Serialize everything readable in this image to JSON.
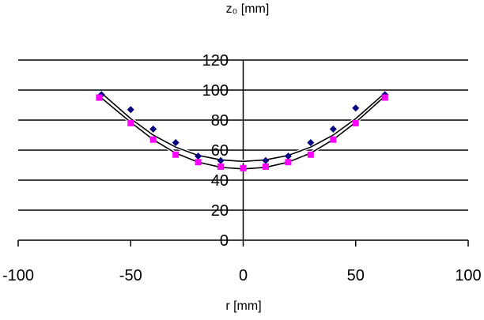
{
  "chart_data": {
    "type": "scatter",
    "title": "",
    "xlabel": "r [mm]",
    "ylabel": "z₀ [mm]",
    "xlim": [
      -100,
      100
    ],
    "ylim": [
      0,
      120
    ],
    "x_ticks": [
      "-100",
      "-50",
      "0",
      "50",
      "100"
    ],
    "y_ticks": [
      "0",
      "20",
      "40",
      "60",
      "80",
      "100",
      "120"
    ],
    "grid": "horizontal",
    "legend": "none",
    "series": [
      {
        "marker": "diamond",
        "color": "#000080",
        "points": [
          [
            -63,
            97
          ],
          [
            -50,
            87
          ],
          [
            -40,
            74
          ],
          [
            -30,
            65
          ],
          [
            -20,
            56
          ],
          [
            -10,
            53
          ],
          [
            10,
            53
          ],
          [
            20,
            56
          ],
          [
            30,
            65
          ],
          [
            40,
            74
          ],
          [
            50,
            88
          ],
          [
            63,
            97
          ]
        ]
      },
      {
        "marker": "square",
        "color": "#ff00ff",
        "points": [
          [
            -64,
            95
          ],
          [
            -50,
            78
          ],
          [
            -40,
            67
          ],
          [
            -30,
            57
          ],
          [
            -20,
            52
          ],
          [
            -10,
            49
          ],
          [
            0,
            48
          ],
          [
            10,
            49
          ],
          [
            20,
            52
          ],
          [
            30,
            57
          ],
          [
            40,
            67
          ],
          [
            50,
            78
          ],
          [
            63,
            95
          ]
        ]
      },
      {
        "type": "line",
        "color": "#000000",
        "points": [
          [
            -63,
            98
          ],
          [
            -50,
            81
          ],
          [
            -40,
            70
          ],
          [
            -30,
            62
          ],
          [
            -20,
            56.5
          ],
          [
            -10,
            53.5
          ],
          [
            0,
            52.5
          ],
          [
            10,
            53.5
          ],
          [
            20,
            56.5
          ],
          [
            30,
            62
          ],
          [
            40,
            70
          ],
          [
            50,
            81
          ],
          [
            63,
            98
          ]
        ]
      },
      {
        "type": "line",
        "color": "#000000",
        "points": [
          [
            -64,
            96
          ],
          [
            -50,
            78.5
          ],
          [
            -40,
            67
          ],
          [
            -30,
            58
          ],
          [
            -20,
            52
          ],
          [
            -10,
            48.5
          ],
          [
            0,
            47.5
          ],
          [
            10,
            48.5
          ],
          [
            20,
            52
          ],
          [
            30,
            58
          ],
          [
            40,
            67
          ],
          [
            50,
            78.5
          ],
          [
            63,
            96
          ]
        ]
      }
    ]
  }
}
